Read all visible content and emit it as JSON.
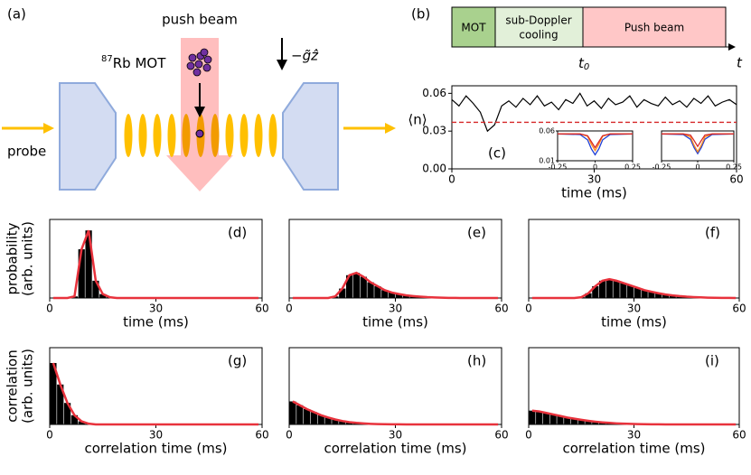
{
  "diagram": {
    "label": "(a)",
    "push": "push beam",
    "mot_mass": "87",
    "mot": "Rb MOT",
    "gravity": "−g̃ẑ",
    "probe": "probe"
  },
  "timeline": {
    "label": "(b)",
    "stages": [
      "MOT",
      "sub-Doppler",
      "cooling",
      "Push beam"
    ],
    "colors": [
      "#a9d18e",
      "#e2f0d9",
      "#ffc7c7"
    ],
    "t0": "t",
    "t0_sub": "0",
    "t": "t"
  },
  "chart_data": [
    {
      "type": "line",
      "label": "(c)",
      "xlabel": "time (ms)",
      "ylabel": "⟨n⟩",
      "color": "#000000",
      "x": [
        0,
        1.5,
        3,
        4.5,
        6,
        7.5,
        9,
        10.5,
        12,
        13.5,
        15,
        16.5,
        18,
        19.5,
        21,
        22.5,
        24,
        25.5,
        27,
        28.5,
        30,
        31.5,
        33,
        34.5,
        36,
        37.5,
        39,
        40.5,
        42,
        43.5,
        45,
        46.5,
        48,
        49.5,
        51,
        52.5,
        54,
        55.5,
        57,
        58.5,
        60
      ],
      "values": [
        0.055,
        0.05,
        0.058,
        0.052,
        0.045,
        0.03,
        0.035,
        0.05,
        0.054,
        0.049,
        0.056,
        0.051,
        0.058,
        0.05,
        0.053,
        0.047,
        0.055,
        0.052,
        0.06,
        0.05,
        0.054,
        0.048,
        0.056,
        0.051,
        0.053,
        0.058,
        0.049,
        0.055,
        0.052,
        0.05,
        0.057,
        0.051,
        0.054,
        0.049,
        0.056,
        0.052,
        0.058,
        0.05,
        0.053,
        0.055,
        0.051
      ],
      "threshold": 0.037,
      "threshold_color": "#d62728",
      "xlim": [
        0,
        60
      ],
      "ylim": [
        0,
        0.066
      ],
      "xticks": [
        0,
        30,
        60
      ],
      "yticks": [
        {
          "value": 0,
          "label": "0.00"
        },
        0.03,
        0.06
      ]
    },
    {
      "type": "histogram",
      "label": "(d)",
      "xlabel": "time (ms)",
      "ylabel": [
        "probability",
        "(arb. units)"
      ],
      "color": "#000000",
      "fit_color": "#e8323c",
      "bins": [
        0,
        2,
        4,
        6,
        8,
        10,
        12,
        14,
        16,
        18,
        20,
        22,
        24,
        26,
        28,
        30,
        32,
        34,
        36,
        38,
        40,
        42,
        44,
        46,
        48,
        50,
        52,
        54,
        56,
        58,
        60
      ],
      "values": [
        0,
        0,
        0,
        0.02,
        0.62,
        0.86,
        0.22,
        0.05,
        0.01,
        0,
        0,
        0,
        0,
        0,
        0,
        0,
        0,
        0,
        0,
        0,
        0,
        0,
        0,
        0,
        0,
        0,
        0,
        0,
        0,
        0
      ],
      "xlim": [
        0,
        60
      ],
      "ylim": [
        0,
        1
      ],
      "xticks": [
        0,
        30,
        60
      ]
    },
    {
      "type": "histogram",
      "label": "(e)",
      "xlabel": "time (ms)",
      "color": "#000000",
      "fit_color": "#e8323c",
      "bins": [
        0,
        2,
        4,
        6,
        8,
        10,
        12,
        14,
        16,
        18,
        20,
        22,
        24,
        26,
        28,
        30,
        32,
        34,
        36,
        38,
        40,
        42,
        44,
        46,
        48,
        50,
        52,
        54,
        56,
        58,
        60
      ],
      "values": [
        0,
        0,
        0,
        0,
        0,
        0,
        0.02,
        0.12,
        0.29,
        0.32,
        0.27,
        0.2,
        0.15,
        0.1,
        0.07,
        0.05,
        0.035,
        0.025,
        0.017,
        0.011,
        0.007,
        0.004,
        0.002,
        0.001,
        0,
        0,
        0,
        0,
        0,
        0
      ],
      "xlim": [
        0,
        60
      ],
      "ylim": [
        0,
        1
      ],
      "xticks": [
        0,
        30,
        60
      ]
    },
    {
      "type": "histogram",
      "label": "(f)",
      "xlabel": "time (ms)",
      "color": "#000000",
      "fit_color": "#e8323c",
      "bins": [
        0,
        2,
        4,
        6,
        8,
        10,
        12,
        14,
        16,
        18,
        20,
        22,
        24,
        26,
        28,
        30,
        32,
        34,
        36,
        38,
        40,
        42,
        44,
        46,
        48,
        50,
        52,
        54,
        56,
        58,
        60
      ],
      "values": [
        0,
        0,
        0,
        0,
        0,
        0,
        0,
        0.01,
        0.06,
        0.15,
        0.22,
        0.24,
        0.22,
        0.19,
        0.16,
        0.13,
        0.1,
        0.08,
        0.06,
        0.045,
        0.033,
        0.024,
        0.017,
        0.012,
        0.008,
        0.005,
        0.003,
        0.002,
        0.001,
        0
      ],
      "xlim": [
        0,
        60
      ],
      "ylim": [
        0,
        1
      ],
      "xticks": [
        0,
        30,
        60
      ]
    },
    {
      "type": "histogram",
      "label": "(g)",
      "xlabel": "correlation time (ms)",
      "ylabel": [
        "correlation",
        "(arb. units)"
      ],
      "color": "#000000",
      "fit_color": "#e8323c",
      "bins": [
        0,
        2,
        4,
        6,
        8,
        10,
        12,
        14,
        16,
        18,
        20,
        22,
        24,
        26,
        28,
        30,
        32,
        34,
        36,
        38,
        40,
        42,
        44,
        46,
        48,
        50,
        52,
        54,
        56,
        58,
        60
      ],
      "values": [
        0.8,
        0.52,
        0.28,
        0.12,
        0.04,
        0.01,
        0,
        0,
        0,
        0,
        0,
        0,
        0,
        0,
        0,
        0,
        0,
        0,
        0,
        0,
        0,
        0,
        0,
        0,
        0,
        0,
        0,
        0,
        0,
        0
      ],
      "xlim": [
        0,
        60
      ],
      "ylim": [
        0,
        1
      ],
      "xticks": [
        0,
        30,
        60
      ]
    },
    {
      "type": "histogram",
      "label": "(h)",
      "xlabel": "correlation time (ms)",
      "color": "#000000",
      "fit_color": "#e8323c",
      "bins": [
        0,
        2,
        4,
        6,
        8,
        10,
        12,
        14,
        16,
        18,
        20,
        22,
        24,
        26,
        28,
        30,
        32,
        34,
        36,
        38,
        40,
        42,
        44,
        46,
        48,
        50,
        52,
        54,
        56,
        58,
        60
      ],
      "values": [
        0.3,
        0.25,
        0.2,
        0.16,
        0.12,
        0.09,
        0.065,
        0.045,
        0.03,
        0.02,
        0.013,
        0.008,
        0.005,
        0.003,
        0.002,
        0.001,
        0,
        0,
        0,
        0,
        0,
        0,
        0,
        0,
        0,
        0,
        0,
        0,
        0,
        0
      ],
      "xlim": [
        0,
        60
      ],
      "ylim": [
        0,
        1
      ],
      "xticks": [
        0,
        30,
        60
      ]
    },
    {
      "type": "histogram",
      "label": "(i)",
      "xlabel": "correlation time (ms)",
      "color": "#000000",
      "fit_color": "#e8323c",
      "bins": [
        0,
        2,
        4,
        6,
        8,
        10,
        12,
        14,
        16,
        18,
        20,
        22,
        24,
        26,
        28,
        30,
        32,
        34,
        36,
        38,
        40,
        42,
        44,
        46,
        48,
        50,
        52,
        54,
        56,
        58,
        60
      ],
      "values": [
        0.18,
        0.17,
        0.15,
        0.13,
        0.11,
        0.09,
        0.075,
        0.06,
        0.047,
        0.036,
        0.027,
        0.02,
        0.014,
        0.01,
        0.007,
        0.005,
        0.003,
        0.002,
        0.001,
        0,
        0,
        0,
        0,
        0,
        0,
        0,
        0,
        0,
        0,
        0
      ],
      "xlim": [
        0,
        60
      ],
      "ylim": [
        0,
        1
      ],
      "xticks": [
        0,
        30,
        60
      ]
    },
    {
      "type": "multiline",
      "x": [
        -0.25,
        -0.1,
        -0.05,
        -0.025,
        0,
        0.025,
        0.05,
        0.1,
        0.25
      ],
      "series": [
        {
          "color": "#1f3fd6",
          "values": [
            0.055,
            0.054,
            0.045,
            0.03,
            0.02,
            0.03,
            0.045,
            0.054,
            0.055
          ]
        },
        {
          "color": "#ff8c1a",
          "values": [
            0.055,
            0.055,
            0.051,
            0.038,
            0.027,
            0.038,
            0.051,
            0.055,
            0.055
          ]
        },
        {
          "color": "#d62728",
          "values": [
            0.055,
            0.055,
            0.052,
            0.042,
            0.032,
            0.042,
            0.052,
            0.055,
            0.055
          ]
        }
      ],
      "xlim": [
        -0.25,
        0.25
      ],
      "ylim": [
        0.01,
        0.06
      ],
      "xticks": [
        -0.25,
        0,
        0.25
      ],
      "yticks": [
        0.01,
        0.06
      ]
    },
    {
      "type": "multiline",
      "x": [
        -0.25,
        -0.1,
        -0.05,
        -0.025,
        0,
        0.025,
        0.05,
        0.1,
        0.25
      ],
      "series": [
        {
          "color": "#1f3fd6",
          "values": [
            0.055,
            0.054,
            0.046,
            0.032,
            0.022,
            0.032,
            0.046,
            0.054,
            0.055
          ]
        },
        {
          "color": "#ff8c1a",
          "values": [
            0.055,
            0.055,
            0.05,
            0.036,
            0.025,
            0.036,
            0.05,
            0.055,
            0.055
          ]
        },
        {
          "color": "#d62728",
          "values": [
            0.055,
            0.055,
            0.053,
            0.044,
            0.034,
            0.044,
            0.053,
            0.055,
            0.055
          ]
        }
      ],
      "xlim": [
        -0.25,
        0.25
      ],
      "ylim": [
        0.01,
        0.06
      ],
      "xticks": [
        -0.25,
        0,
        0.25
      ]
    }
  ]
}
